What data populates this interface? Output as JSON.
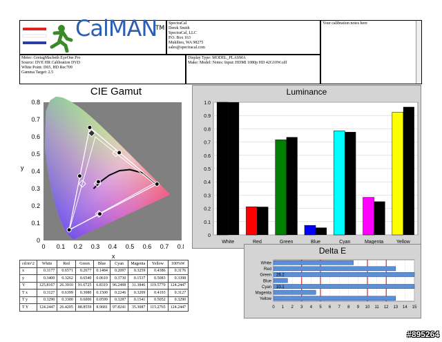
{
  "header": {
    "logo_text": "CalMAN",
    "logo_tm": "TM",
    "company_lines": [
      "SpectraCal",
      "Derek Smith",
      "SpectraCal, LLC",
      "P.O. Box 163",
      "Mukilteo, WA 98275",
      "sales@spectracal.com"
    ],
    "notes": "Your calibration notes here",
    "meter_lines": [
      "Meter: GretagMacbeth EyeOne Pro",
      "Source: DVE HR Calibration DVD",
      "White Point: D65, HD Rec709",
      "Gamma Target: 2.5"
    ],
    "display_lines": [
      "Display Type: MODEL_PLASMA",
      "Make: Model: Notes: Input: HDMI 1080p HD      42G10W.cdf"
    ]
  },
  "chart_data": [
    {
      "type": "scatter",
      "title": "CIE Gamut",
      "xlabel": "x",
      "ylabel": "y",
      "xlim": [
        0,
        0.8
      ],
      "ylim": [
        0,
        0.8
      ],
      "xticks": [
        "0",
        "0.1",
        "0.2",
        "0.3",
        "0.4",
        "0.5",
        "0.6",
        "0.7",
        "0.8"
      ],
      "yticks": [
        "0",
        "0.1",
        "0.2",
        "0.3",
        "0.4",
        "0.5",
        "0.6",
        "0.7",
        "0.8"
      ],
      "target_gamut": [
        [
          0.64,
          0.33
        ],
        [
          0.3,
          0.6
        ],
        [
          0.15,
          0.06
        ]
      ],
      "measured_gamut": [
        [
          0.6571,
          0.3262
        ],
        [
          0.2677,
          0.654
        ],
        [
          0.1484,
          0.061
        ]
      ],
      "points": {
        "red": [
          0.6571,
          0.3262
        ],
        "green": [
          0.2677,
          0.654
        ],
        "blue": [
          0.1484,
          0.061
        ],
        "cyan": [
          0.2097,
          0.373
        ],
        "magenta": [
          0.3259,
          0.1537
        ],
        "yellow": [
          0.4386,
          0.5083
        ],
        "white": [
          0.3177,
          0.34
        ]
      },
      "target_points": {
        "cyan": [
          0.2246,
          0.3287
        ],
        "magenta": [
          0.3209,
          0.1541
        ],
        "yellow": [
          0.4193,
          0.5052
        ],
        "white": [
          0.3127,
          0.329
        ]
      }
    },
    {
      "type": "bar",
      "title": "Luminance",
      "categories": [
        "White",
        "Red",
        "Green",
        "Blue",
        "Cyan",
        "Magenta",
        "Yellow"
      ],
      "colors": [
        "#000000",
        "#ff0000",
        "#008000",
        "#0000ff",
        "#00ffff",
        "#ff00ff",
        "#ffff00"
      ],
      "series": [
        {
          "values": [
            1.0,
            0.212,
            0.717,
            0.072,
            0.785,
            0.283,
            0.925
          ]
        },
        {
          "values": [
            1.0,
            0.212,
            0.737,
            0.055,
            0.776,
            0.252,
            0.965
          ]
        }
      ],
      "ylim": [
        0,
        1.0
      ],
      "yticks": [
        "0",
        "0.1",
        "0.2",
        "0.3",
        "0.4",
        "0.5",
        "0.6",
        "0.7",
        "0.8",
        "0.9",
        "1.0"
      ]
    },
    {
      "type": "bar",
      "orientation": "horizontal",
      "title": "Delta E",
      "categories": [
        "White",
        "Red",
        "Green",
        "Blue",
        "Cyan",
        "Magenta",
        "Yellow"
      ],
      "values": [
        8.5,
        13.0,
        26.2,
        1.5,
        33.1,
        4.5,
        13.0
      ],
      "value_labels": [
        "",
        "",
        "26.2",
        "",
        "33.1",
        "",
        ""
      ],
      "xlim": [
        0,
        15
      ],
      "xticks": [
        "0",
        "1",
        "2",
        "3",
        "4",
        "5",
        "6",
        "7",
        "8",
        "9",
        "10",
        "11",
        "12",
        "13",
        "14",
        "15"
      ],
      "reference_lines": [
        3,
        5,
        10,
        12
      ]
    },
    {
      "type": "table",
      "columns": [
        "cd/m^2",
        "White",
        "Red",
        "Green",
        "Blue",
        "Cyan",
        "Magenta",
        "Yellow",
        "100%W"
      ],
      "rows": [
        [
          "x",
          "0.3177",
          "0.6571",
          "0.2677",
          "0.1484",
          "0.2097",
          "0.3259",
          "0.4386",
          "0.3176"
        ],
        [
          "y",
          "0.3400",
          "0.3262",
          "0.6540",
          "0.0610",
          "0.3730",
          "0.1537",
          "0.5083",
          "0.3398"
        ],
        [
          "Y",
          "125.8167",
          "26.3910",
          "91.6725",
          "6.8319",
          "96.2498",
          "31.3846",
          "119.5770",
          "124.2447"
        ],
        [
          "T x",
          "0.3127",
          "0.6399",
          "0.3080",
          "0.1500",
          "0.2246",
          "0.3209",
          "0.4193",
          "0.3127"
        ],
        [
          "T y",
          "0.3290",
          "0.3300",
          "0.6000",
          "0.0599",
          "0.3287",
          "0.1541",
          "0.5052",
          "0.3290"
        ],
        [
          "T Y",
          "124.2447",
          "26.4205",
          "88.8559",
          "8.9681",
          "97.8241",
          "35.3087",
          "115.2765",
          "124.2447"
        ]
      ]
    }
  ],
  "watermark": "#895264"
}
